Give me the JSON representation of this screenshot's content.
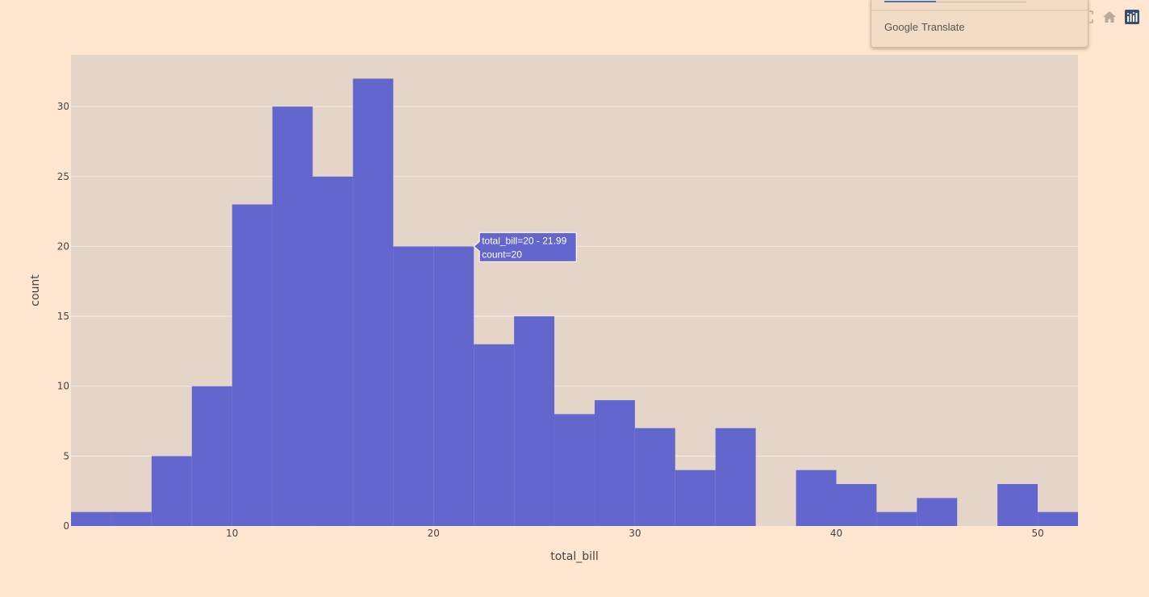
{
  "chart_data": {
    "type": "bar",
    "title": "",
    "xlabel": "total_bill",
    "ylabel": "count",
    "xlim": [
      2,
      52
    ],
    "ylim": [
      0,
      33.7
    ],
    "x_ticks": [
      10,
      20,
      30,
      40,
      50
    ],
    "y_ticks": [
      0,
      5,
      10,
      15,
      20,
      25,
      30
    ],
    "bin_width": 2,
    "bins": [
      {
        "start": 2,
        "end": 3.99,
        "count": 1
      },
      {
        "start": 4,
        "end": 5.99,
        "count": 1
      },
      {
        "start": 6,
        "end": 7.99,
        "count": 5
      },
      {
        "start": 8,
        "end": 9.99,
        "count": 10
      },
      {
        "start": 10,
        "end": 11.99,
        "count": 23
      },
      {
        "start": 12,
        "end": 13.99,
        "count": 30
      },
      {
        "start": 14,
        "end": 15.99,
        "count": 25
      },
      {
        "start": 16,
        "end": 17.99,
        "count": 32
      },
      {
        "start": 18,
        "end": 19.99,
        "count": 20
      },
      {
        "start": 20,
        "end": 21.99,
        "count": 20
      },
      {
        "start": 22,
        "end": 23.99,
        "count": 13
      },
      {
        "start": 24,
        "end": 25.99,
        "count": 15
      },
      {
        "start": 26,
        "end": 27.99,
        "count": 8
      },
      {
        "start": 28,
        "end": 29.99,
        "count": 9
      },
      {
        "start": 30,
        "end": 31.99,
        "count": 7
      },
      {
        "start": 32,
        "end": 33.99,
        "count": 4
      },
      {
        "start": 34,
        "end": 35.99,
        "count": 7
      },
      {
        "start": 36,
        "end": 37.99,
        "count": 0
      },
      {
        "start": 38,
        "end": 39.99,
        "count": 4
      },
      {
        "start": 40,
        "end": 41.99,
        "count": 3
      },
      {
        "start": 42,
        "end": 43.99,
        "count": 1
      },
      {
        "start": 44,
        "end": 45.99,
        "count": 2
      },
      {
        "start": 46,
        "end": 47.99,
        "count": 0
      },
      {
        "start": 48,
        "end": 49.99,
        "count": 3
      },
      {
        "start": 50,
        "end": 51.99,
        "count": 1
      }
    ],
    "bar_color": "#6366cc",
    "plot_bg": "#e5d5c9",
    "paper_bg": "#ffe6d0",
    "grid": true,
    "grid_color": "#f2ebe5",
    "tooltip": {
      "line1": "total_bill=20 - 21.99",
      "line2": "count=20"
    }
  },
  "translate_popup": {
    "brand_google": "Google",
    "brand_translate": "Translate"
  },
  "modebar": {
    "icons": [
      "autoscale-icon",
      "home-icon",
      "plotly-logo-icon"
    ]
  }
}
